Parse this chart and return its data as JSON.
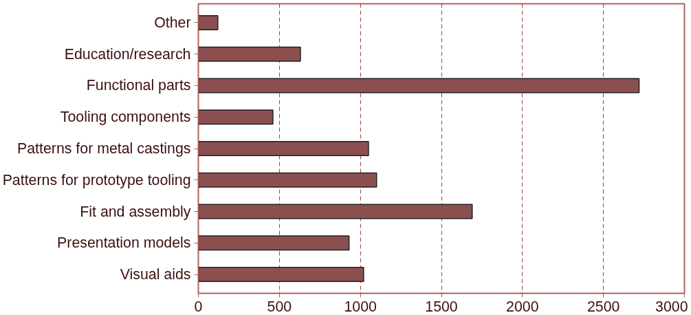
{
  "chart_data": {
    "type": "bar",
    "orientation": "horizontal",
    "categories": [
      "Other",
      "Education/research",
      "Functional parts",
      "Tooling components",
      "Patterns for metal castings",
      "Patterns for prototype tooling",
      "Fit and assembly",
      "Presentation models",
      "Visual aids"
    ],
    "values": [
      120,
      630,
      2720,
      460,
      1050,
      1100,
      1690,
      930,
      1020
    ],
    "color": "#8c4f4f",
    "xlim": [
      0,
      3000
    ],
    "xticks": [
      0,
      500,
      1000,
      1500,
      2000,
      2500,
      3000
    ],
    "grid": "x"
  }
}
